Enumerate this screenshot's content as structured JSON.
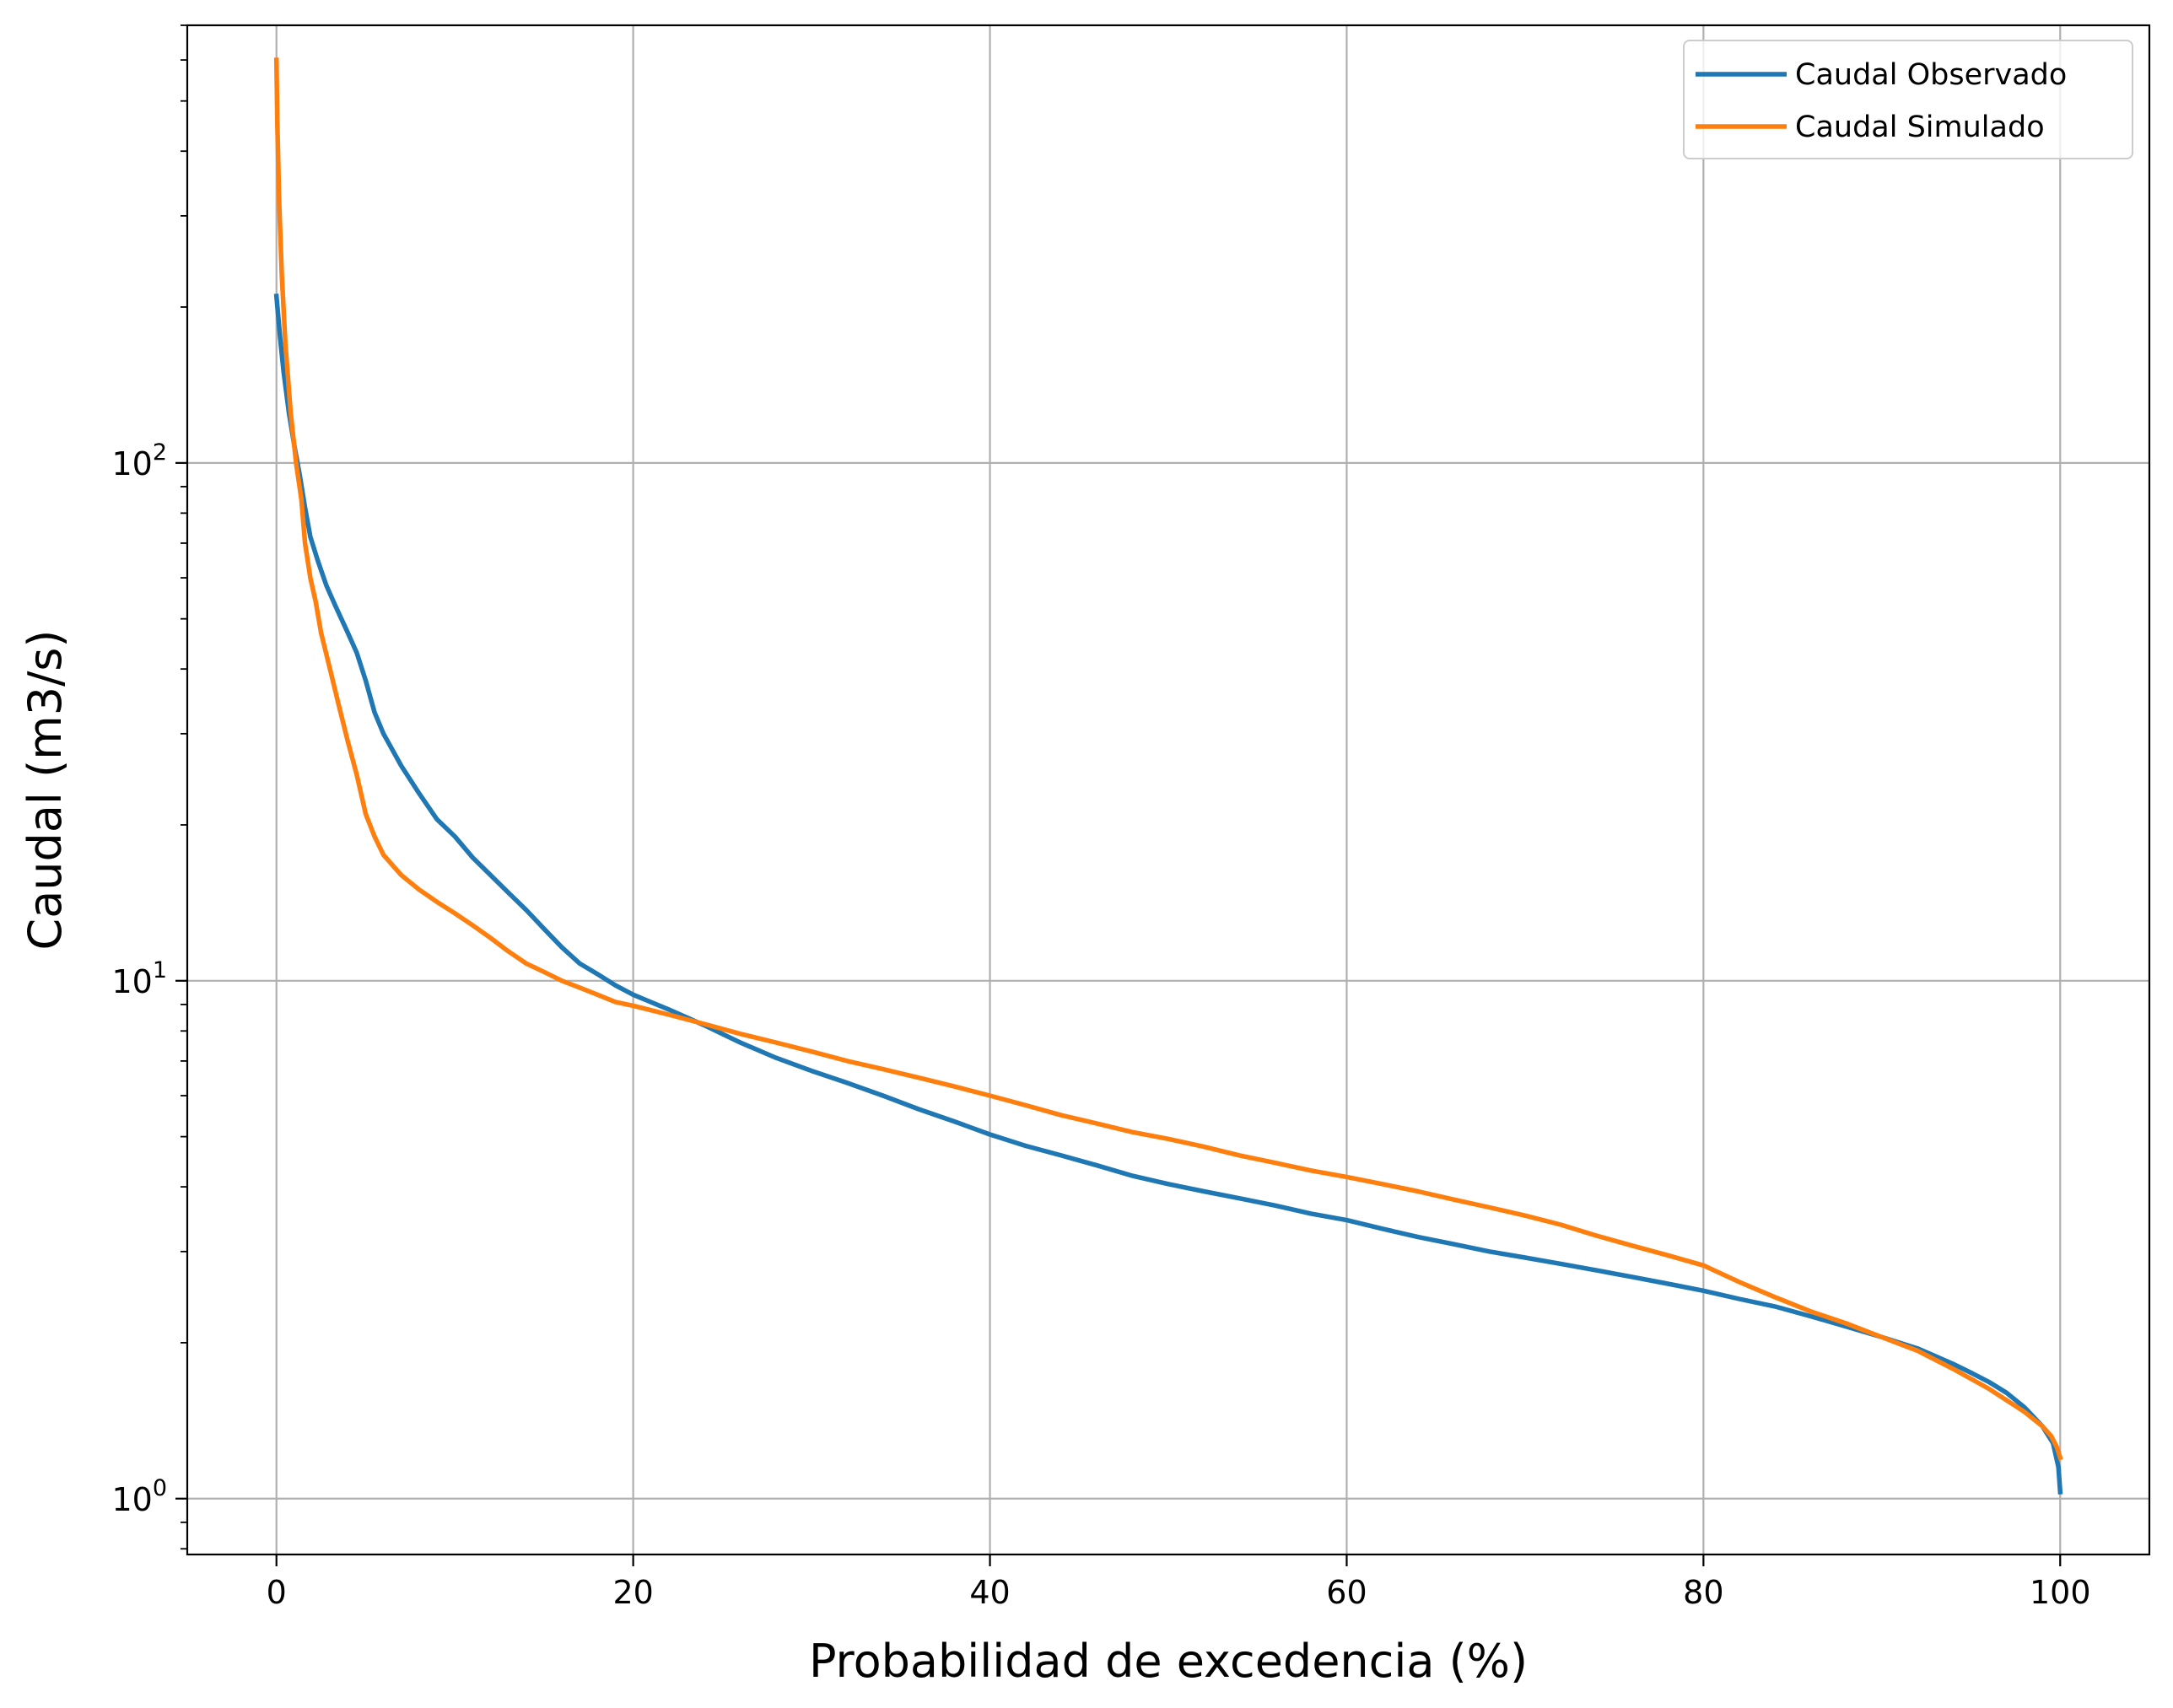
{
  "chart_data": {
    "type": "line",
    "title": "",
    "xlabel": "Probabilidad de excedencia (%)",
    "ylabel": "Caudal (m3/s)",
    "xlim": [
      -5,
      105
    ],
    "ylim": [
      0.78,
      700
    ],
    "yscale": "log",
    "grid": true,
    "legend_position": "top-right",
    "xticks": [
      {
        "value": 0,
        "label": "0"
      },
      {
        "value": 20,
        "label": "20"
      },
      {
        "value": 40,
        "label": "40"
      },
      {
        "value": 60,
        "label": "60"
      },
      {
        "value": 80,
        "label": "80"
      },
      {
        "value": 100,
        "label": "100"
      }
    ],
    "yticks": [
      {
        "value": 1,
        "base": "10",
        "exp": "0"
      },
      {
        "value": 10,
        "base": "10",
        "exp": "1"
      },
      {
        "value": 100,
        "base": "10",
        "exp": "2"
      }
    ],
    "series": [
      {
        "name": "Caudal Observado",
        "color": "#1f77b4",
        "points": [
          [
            0,
            210
          ],
          [
            0.2,
            175
          ],
          [
            0.4,
            150
          ],
          [
            0.7,
            125
          ],
          [
            1.0,
            108
          ],
          [
            1.3,
            95
          ],
          [
            1.6,
            82
          ],
          [
            1.9,
            72
          ],
          [
            2.3,
            65
          ],
          [
            2.8,
            58
          ],
          [
            3.3,
            53
          ],
          [
            4.0,
            47
          ],
          [
            4.5,
            43
          ],
          [
            5.0,
            38
          ],
          [
            5.5,
            33
          ],
          [
            6.0,
            30
          ],
          [
            7.0,
            26
          ],
          [
            8.0,
            23
          ],
          [
            9.0,
            20.5
          ],
          [
            10,
            19
          ],
          [
            11,
            17.3
          ],
          [
            12,
            16
          ],
          [
            13,
            14.8
          ],
          [
            14,
            13.7
          ],
          [
            15,
            12.6
          ],
          [
            16,
            11.6
          ],
          [
            17,
            10.8
          ],
          [
            18,
            10.3
          ],
          [
            19,
            9.8
          ],
          [
            20,
            9.4
          ],
          [
            22,
            8.8
          ],
          [
            24,
            8.2
          ],
          [
            26,
            7.6
          ],
          [
            28,
            7.1
          ],
          [
            30,
            6.7
          ],
          [
            32,
            6.35
          ],
          [
            34,
            6.0
          ],
          [
            36,
            5.65
          ],
          [
            38,
            5.35
          ],
          [
            40,
            5.05
          ],
          [
            42,
            4.8
          ],
          [
            44,
            4.6
          ],
          [
            46,
            4.4
          ],
          [
            48,
            4.2
          ],
          [
            50,
            4.05
          ],
          [
            52,
            3.92
          ],
          [
            54,
            3.8
          ],
          [
            56,
            3.68
          ],
          [
            58,
            3.55
          ],
          [
            60,
            3.45
          ],
          [
            62,
            3.32
          ],
          [
            64,
            3.2
          ],
          [
            66,
            3.1
          ],
          [
            68,
            3.0
          ],
          [
            70,
            2.92
          ],
          [
            72,
            2.84
          ],
          [
            74,
            2.76
          ],
          [
            76,
            2.68
          ],
          [
            78,
            2.6
          ],
          [
            80,
            2.52
          ],
          [
            82,
            2.43
          ],
          [
            84,
            2.35
          ],
          [
            86,
            2.25
          ],
          [
            88,
            2.15
          ],
          [
            90,
            2.05
          ],
          [
            92,
            1.95
          ],
          [
            94,
            1.82
          ],
          [
            95,
            1.75
          ],
          [
            96,
            1.68
          ],
          [
            97,
            1.6
          ],
          [
            98,
            1.5
          ],
          [
            99,
            1.38
          ],
          [
            99.6,
            1.28
          ],
          [
            99.9,
            1.15
          ],
          [
            100,
            1.03
          ]
        ]
      },
      {
        "name": "Caudal Simulado",
        "color": "#ff7f0e",
        "points": [
          [
            0,
            600
          ],
          [
            0.05,
            450
          ],
          [
            0.15,
            320
          ],
          [
            0.3,
            230
          ],
          [
            0.5,
            170
          ],
          [
            0.8,
            125
          ],
          [
            1.1,
            100
          ],
          [
            1.4,
            85
          ],
          [
            1.6,
            70
          ],
          [
            1.9,
            60
          ],
          [
            2.2,
            54
          ],
          [
            2.5,
            47
          ],
          [
            3.0,
            40
          ],
          [
            3.5,
            34
          ],
          [
            4.0,
            29
          ],
          [
            4.5,
            25
          ],
          [
            5.0,
            21
          ],
          [
            5.5,
            19
          ],
          [
            6.0,
            17.5
          ],
          [
            7.0,
            16
          ],
          [
            8.0,
            15
          ],
          [
            9.0,
            14.2
          ],
          [
            10,
            13.5
          ],
          [
            11,
            12.8
          ],
          [
            12,
            12.1
          ],
          [
            13,
            11.4
          ],
          [
            14,
            10.8
          ],
          [
            15,
            10.4
          ],
          [
            16,
            10.0
          ],
          [
            17,
            9.7
          ],
          [
            18,
            9.4
          ],
          [
            19,
            9.1
          ],
          [
            20,
            8.95
          ],
          [
            22,
            8.6
          ],
          [
            24,
            8.25
          ],
          [
            26,
            7.9
          ],
          [
            28,
            7.6
          ],
          [
            30,
            7.3
          ],
          [
            32,
            7.0
          ],
          [
            34,
            6.75
          ],
          [
            36,
            6.5
          ],
          [
            38,
            6.25
          ],
          [
            40,
            6.0
          ],
          [
            42,
            5.75
          ],
          [
            44,
            5.5
          ],
          [
            46,
            5.3
          ],
          [
            48,
            5.1
          ],
          [
            50,
            4.95
          ],
          [
            52,
            4.78
          ],
          [
            54,
            4.6
          ],
          [
            56,
            4.45
          ],
          [
            58,
            4.3
          ],
          [
            60,
            4.18
          ],
          [
            62,
            4.05
          ],
          [
            64,
            3.92
          ],
          [
            66,
            3.78
          ],
          [
            68,
            3.65
          ],
          [
            70,
            3.52
          ],
          [
            72,
            3.38
          ],
          [
            74,
            3.22
          ],
          [
            76,
            3.08
          ],
          [
            78,
            2.95
          ],
          [
            80,
            2.82
          ],
          [
            82,
            2.62
          ],
          [
            84,
            2.45
          ],
          [
            86,
            2.3
          ],
          [
            88,
            2.18
          ],
          [
            90,
            2.05
          ],
          [
            92,
            1.93
          ],
          [
            94,
            1.78
          ],
          [
            96,
            1.63
          ],
          [
            98,
            1.47
          ],
          [
            99,
            1.38
          ],
          [
            99.5,
            1.32
          ],
          [
            99.8,
            1.26
          ],
          [
            100,
            1.2
          ]
        ]
      }
    ]
  }
}
